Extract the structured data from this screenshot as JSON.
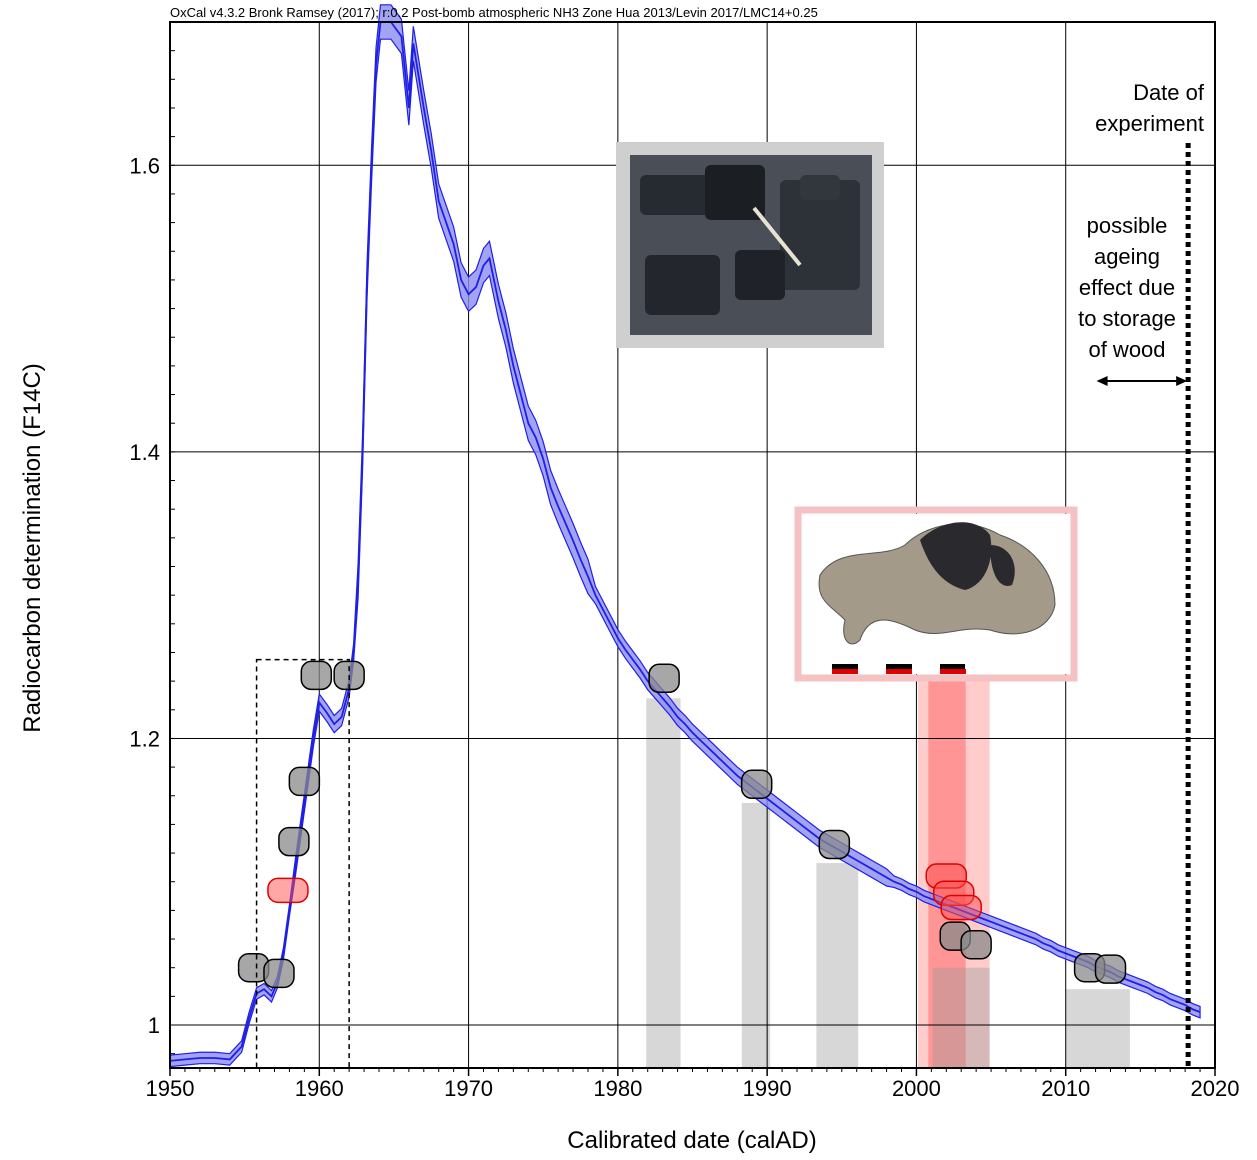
{
  "chart_data": {
    "type": "line",
    "title": "OxCal v4.3.2 Bronk Ramsey (2017); r:0.2 Post-bomb atmospheric NH3 Zone Hua 2013/Levin 2017/LMC14+0.25",
    "xlabel": "Calibrated date (calAD)",
    "ylabel": "Radiocarbon determination (F14C)",
    "xlim": [
      1950,
      2020
    ],
    "ylim": [
      0.97,
      1.7
    ],
    "xticks": [
      1950,
      1960,
      1970,
      1980,
      1990,
      2000,
      2010,
      2020
    ],
    "yticks": [
      1,
      1.2,
      1.4,
      1.6
    ],
    "ytick_labels": [
      "1",
      "1.2",
      "1.4",
      "1.6"
    ],
    "grid": true,
    "series": [
      {
        "color": "#1f1fe6",
        "fill": "#8c8cf0",
        "points": [
          [
            1950.0,
            0.975
          ],
          [
            1951.0,
            0.976
          ],
          [
            1952.0,
            0.977
          ],
          [
            1953.0,
            0.977
          ],
          [
            1954.0,
            0.976
          ],
          [
            1954.8,
            0.985
          ],
          [
            1955.3,
            1.005
          ],
          [
            1955.8,
            1.022
          ],
          [
            1956.3,
            1.025
          ],
          [
            1956.8,
            1.02
          ],
          [
            1957.2,
            1.03
          ],
          [
            1957.6,
            1.05
          ],
          [
            1958.0,
            1.08
          ],
          [
            1958.4,
            1.11
          ],
          [
            1958.8,
            1.14
          ],
          [
            1959.2,
            1.17
          ],
          [
            1959.6,
            1.2
          ],
          [
            1960.0,
            1.225
          ],
          [
            1960.5,
            1.218
          ],
          [
            1961.0,
            1.21
          ],
          [
            1961.5,
            1.215
          ],
          [
            1962.0,
            1.235
          ],
          [
            1962.3,
            1.26
          ],
          [
            1962.6,
            1.31
          ],
          [
            1962.9,
            1.4
          ],
          [
            1963.2,
            1.52
          ],
          [
            1963.5,
            1.6
          ],
          [
            1963.8,
            1.67
          ],
          [
            1964.1,
            1.7
          ],
          [
            1964.8,
            1.7
          ],
          [
            1965.5,
            1.69
          ],
          [
            1966.0,
            1.64
          ],
          [
            1966.3,
            1.685
          ],
          [
            1967.0,
            1.64
          ],
          [
            1967.5,
            1.61
          ],
          [
            1968.0,
            1.575
          ],
          [
            1968.5,
            1.56
          ],
          [
            1969.0,
            1.545
          ],
          [
            1969.5,
            1.52
          ],
          [
            1970.0,
            1.51
          ],
          [
            1970.5,
            1.515
          ],
          [
            1971.0,
            1.53
          ],
          [
            1971.4,
            1.535
          ],
          [
            1972.0,
            1.505
          ],
          [
            1972.5,
            1.485
          ],
          [
            1973.0,
            1.46
          ],
          [
            1973.5,
            1.44
          ],
          [
            1974.0,
            1.42
          ],
          [
            1974.5,
            1.41
          ],
          [
            1975.0,
            1.395
          ],
          [
            1975.5,
            1.375
          ],
          [
            1976.0,
            1.362
          ],
          [
            1976.5,
            1.35
          ],
          [
            1977.0,
            1.338
          ],
          [
            1977.5,
            1.325
          ],
          [
            1978.0,
            1.313
          ],
          [
            1978.5,
            1.3
          ],
          [
            1979.0,
            1.29
          ],
          [
            1979.5,
            1.28
          ],
          [
            1980.0,
            1.27
          ],
          [
            1980.5,
            1.262
          ],
          [
            1981.0,
            1.255
          ],
          [
            1981.5,
            1.248
          ],
          [
            1982.0,
            1.24
          ],
          [
            1982.5,
            1.234
          ],
          [
            1983.0,
            1.228
          ],
          [
            1983.5,
            1.222
          ],
          [
            1984.0,
            1.215
          ],
          [
            1984.5,
            1.21
          ],
          [
            1985.0,
            1.204
          ],
          [
            1985.5,
            1.199
          ],
          [
            1986.0,
            1.194
          ],
          [
            1986.5,
            1.189
          ],
          [
            1987.0,
            1.184
          ],
          [
            1987.5,
            1.179
          ],
          [
            1988.0,
            1.174
          ],
          [
            1988.5,
            1.17
          ],
          [
            1989.0,
            1.166
          ],
          [
            1989.5,
            1.162
          ],
          [
            1990.0,
            1.158
          ],
          [
            1990.5,
            1.154
          ],
          [
            1991.0,
            1.15
          ],
          [
            1991.5,
            1.146
          ],
          [
            1992.0,
            1.142
          ],
          [
            1992.5,
            1.138
          ],
          [
            1993.0,
            1.134
          ],
          [
            1993.5,
            1.13
          ],
          [
            1994.0,
            1.127
          ],
          [
            1994.5,
            1.124
          ],
          [
            1995.0,
            1.121
          ],
          [
            1995.5,
            1.118
          ],
          [
            1996.0,
            1.115
          ],
          [
            1996.5,
            1.112
          ],
          [
            1997.0,
            1.109
          ],
          [
            1997.5,
            1.106
          ],
          [
            1998.0,
            1.103
          ],
          [
            1998.5,
            1.1
          ],
          [
            1999.0,
            1.098
          ],
          [
            1999.5,
            1.095
          ],
          [
            2000.0,
            1.093
          ],
          [
            2000.5,
            1.09
          ],
          [
            2001.0,
            1.088
          ],
          [
            2001.5,
            1.086
          ],
          [
            2002.0,
            1.084
          ],
          [
            2002.5,
            1.082
          ],
          [
            2003.0,
            1.08
          ],
          [
            2003.5,
            1.078
          ],
          [
            2004.0,
            1.076
          ],
          [
            2004.5,
            1.074
          ],
          [
            2005.0,
            1.072
          ],
          [
            2005.5,
            1.07
          ],
          [
            2006.0,
            1.068
          ],
          [
            2006.5,
            1.066
          ],
          [
            2007.0,
            1.064
          ],
          [
            2007.5,
            1.062
          ],
          [
            2008.0,
            1.06
          ],
          [
            2008.5,
            1.057
          ],
          [
            2009.0,
            1.055
          ],
          [
            2009.5,
            1.052
          ],
          [
            2010.0,
            1.05
          ],
          [
            2010.5,
            1.048
          ],
          [
            2011.0,
            1.046
          ],
          [
            2011.5,
            1.044
          ],
          [
            2012.0,
            1.041
          ],
          [
            2012.5,
            1.039
          ],
          [
            2013.0,
            1.037
          ],
          [
            2013.5,
            1.034
          ],
          [
            2014.0,
            1.032
          ],
          [
            2014.5,
            1.03
          ],
          [
            2015.0,
            1.028
          ],
          [
            2015.5,
            1.026
          ],
          [
            2016.0,
            1.023
          ],
          [
            2016.5,
            1.021
          ],
          [
            2017.0,
            1.018
          ],
          [
            2017.5,
            1.016
          ],
          [
            2018.0,
            1.014
          ],
          [
            2018.5,
            1.011
          ],
          [
            2019.0,
            1.009
          ]
        ]
      }
    ],
    "gray_ranges": [
      {
        "x0": 1981.9,
        "x1": 1984.2,
        "ytop": 1.228
      },
      {
        "x0": 1988.3,
        "x1": 1990.2,
        "ytop": 1.155
      },
      {
        "x0": 1993.3,
        "x1": 1996.1,
        "ytop": 1.113
      },
      {
        "x0": 2001.1,
        "x1": 2004.9,
        "ytop": 1.04
      },
      {
        "x0": 2010.0,
        "x1": 2014.3,
        "ytop": 1.025
      }
    ],
    "red_ranges": [
      {
        "x0": 2000.1,
        "x1": 2004.9,
        "opacity": 0.25
      },
      {
        "x0": 2000.8,
        "x1": 2003.3,
        "opacity": 0.35
      }
    ],
    "gray_ellipses": [
      [
        1955.6,
        1.04
      ],
      [
        1957.3,
        1.036
      ],
      [
        1958.3,
        1.128
      ],
      [
        1959.0,
        1.17
      ],
      [
        1959.8,
        1.244
      ],
      [
        1962.0,
        1.244
      ],
      [
        1983.1,
        1.242
      ],
      [
        1989.3,
        1.168
      ],
      [
        1994.5,
        1.126
      ],
      [
        2002.6,
        1.062
      ],
      [
        2004.0,
        1.056
      ],
      [
        2011.6,
        1.04
      ],
      [
        2013.0,
        1.039
      ]
    ],
    "red_ellipses": [
      [
        1957.9,
        1.094
      ],
      [
        2002.0,
        1.104
      ],
      [
        2002.5,
        1.092
      ],
      [
        2003.0,
        1.082
      ]
    ],
    "dashed_box": {
      "x0": 1955.8,
      "x1": 1962.0,
      "y0": 0.97,
      "y1": 1.255
    },
    "experiment_x": 2018.2,
    "annotations": {
      "date_of_experiment": [
        "Date of",
        "experiment"
      ],
      "ageing": [
        "possible",
        "ageing",
        "effect due",
        "to storage",
        "of wood"
      ],
      "arrow_x": [
        2012.2,
        2018.0
      ],
      "arrow_y": 1.458
    },
    "photos": [
      {
        "name": "charcoal-photo",
        "frame_color": "#cfcfcf"
      },
      {
        "name": "wood-fragment-photo",
        "frame_color": "#f4c2c2"
      }
    ]
  }
}
